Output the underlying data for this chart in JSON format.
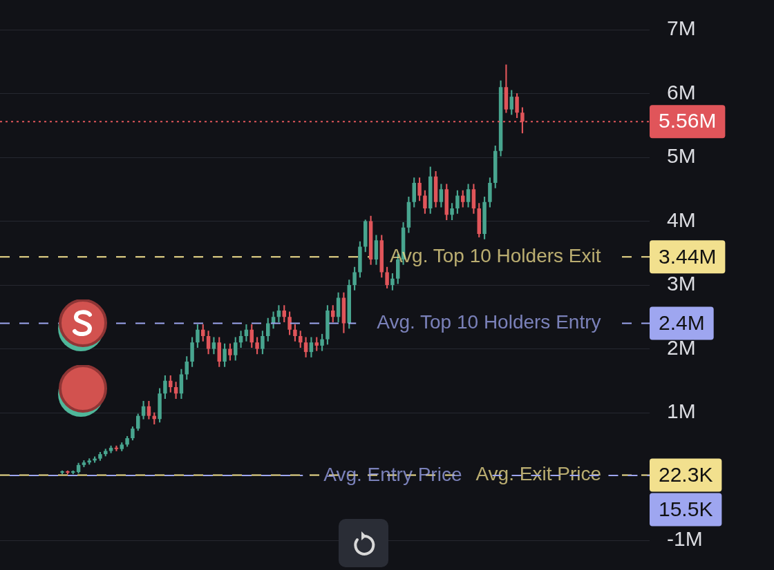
{
  "chart_data": {
    "type": "candlestick",
    "categories": [
      null,
      null,
      null,
      null,
      null,
      null,
      null,
      null,
      null,
      null,
      null,
      null,
      null,
      null,
      null,
      null,
      null,
      null,
      null,
      null,
      null,
      null,
      null,
      null,
      null,
      null,
      null,
      null,
      null,
      null,
      null,
      null,
      null,
      null,
      null,
      null,
      null,
      null,
      null,
      null,
      null,
      null,
      null,
      null,
      null,
      null,
      null,
      null,
      null,
      null,
      null,
      null,
      null,
      null,
      null,
      null,
      null,
      null,
      null,
      null,
      null,
      null,
      null,
      null,
      null,
      null,
      null,
      null,
      null,
      null,
      null,
      null,
      null,
      null,
      null,
      null,
      null,
      null,
      null,
      null,
      null,
      null,
      null,
      null,
      null,
      null,
      null,
      null,
      null,
      null,
      null,
      null,
      null,
      null,
      null,
      null,
      null,
      null,
      null,
      null,
      null,
      null,
      null,
      null,
      null,
      null,
      null,
      null,
      null,
      null,
      null,
      null,
      null,
      null,
      null,
      null,
      null,
      null,
      null,
      null
    ],
    "ohlc": [
      null,
      null,
      null,
      null,
      null,
      null,
      null,
      null,
      null,
      null,
      null,
      [
        0.06,
        0.09,
        0.04,
        0.07
      ],
      [
        0.07,
        0.09,
        0.04,
        0.06
      ],
      [
        0.06,
        0.09,
        0.04,
        0.07
      ],
      [
        0.07,
        0.21,
        0.05,
        0.18
      ],
      [
        0.18,
        0.25,
        0.15,
        0.22
      ],
      [
        0.22,
        0.28,
        0.19,
        0.25
      ],
      [
        0.25,
        0.31,
        0.22,
        0.28
      ],
      [
        0.28,
        0.38,
        0.25,
        0.35
      ],
      [
        0.35,
        0.43,
        0.32,
        0.4
      ],
      [
        0.4,
        0.48,
        0.37,
        0.45
      ],
      [
        0.45,
        0.48,
        0.4,
        0.43
      ],
      [
        0.43,
        0.53,
        0.4,
        0.5
      ],
      [
        0.5,
        0.63,
        0.47,
        0.6
      ],
      [
        0.6,
        0.78,
        0.57,
        0.75
      ],
      [
        0.75,
        0.98,
        0.72,
        0.95
      ],
      [
        0.95,
        1.18,
        0.9,
        1.1
      ],
      [
        1.1,
        1.18,
        0.9,
        0.95
      ],
      [
        0.95,
        1.0,
        0.82,
        0.9
      ],
      [
        0.9,
        1.38,
        0.85,
        1.3
      ],
      [
        1.3,
        1.58,
        1.22,
        1.5
      ],
      [
        1.5,
        1.58,
        1.32,
        1.4
      ],
      [
        1.4,
        1.48,
        1.22,
        1.3
      ],
      [
        1.3,
        1.68,
        1.22,
        1.6
      ],
      [
        1.6,
        1.88,
        1.52,
        1.8
      ],
      [
        1.8,
        2.18,
        1.72,
        2.1
      ],
      [
        2.1,
        2.38,
        2.02,
        2.3
      ],
      [
        2.3,
        2.38,
        2.12,
        2.2
      ],
      [
        2.2,
        2.28,
        1.92,
        2.0
      ],
      [
        2.0,
        2.18,
        1.92,
        2.1
      ],
      [
        2.1,
        2.18,
        1.72,
        1.8
      ],
      [
        1.8,
        2.08,
        1.72,
        2.0
      ],
      [
        2.0,
        2.08,
        1.82,
        1.9
      ],
      [
        1.9,
        2.18,
        1.82,
        2.1
      ],
      [
        2.1,
        2.28,
        2.02,
        2.2
      ],
      [
        2.2,
        2.38,
        2.12,
        2.3
      ],
      [
        2.3,
        2.38,
        2.02,
        2.1
      ],
      [
        2.1,
        2.18,
        1.92,
        2.0
      ],
      [
        2.0,
        2.28,
        1.92,
        2.2
      ],
      [
        2.2,
        2.48,
        2.12,
        2.4
      ],
      [
        2.4,
        2.58,
        2.32,
        2.5
      ],
      [
        2.5,
        2.68,
        2.42,
        2.6
      ],
      [
        2.6,
        2.68,
        2.42,
        2.5
      ],
      [
        2.5,
        2.58,
        2.22,
        2.3
      ],
      [
        2.3,
        2.38,
        2.12,
        2.2
      ],
      [
        2.2,
        2.28,
        2.02,
        2.1
      ],
      [
        2.1,
        2.18,
        1.87,
        1.95
      ],
      [
        1.95,
        2.18,
        1.87,
        2.1
      ],
      [
        2.1,
        2.18,
        1.97,
        2.05
      ],
      [
        2.05,
        2.23,
        1.97,
        2.15
      ],
      [
        2.15,
        2.68,
        2.07,
        2.6
      ],
      [
        2.6,
        2.68,
        2.42,
        2.5
      ],
      [
        2.5,
        2.88,
        2.42,
        2.8
      ],
      [
        2.8,
        2.88,
        2.25,
        2.4
      ],
      [
        2.4,
        3.08,
        2.32,
        3.0
      ],
      [
        3.0,
        3.28,
        2.92,
        3.2
      ],
      [
        3.2,
        3.68,
        3.12,
        3.6
      ],
      [
        3.6,
        4.02,
        3.52,
        4.0
      ],
      [
        4.0,
        4.08,
        3.32,
        3.4
      ],
      [
        3.4,
        3.78,
        3.32,
        3.7
      ],
      [
        3.7,
        3.78,
        3.12,
        3.2
      ],
      [
        3.2,
        3.28,
        2.95,
        3.0
      ],
      [
        3.0,
        3.18,
        2.92,
        3.1
      ],
      [
        3.1,
        3.48,
        3.02,
        3.4
      ],
      [
        3.4,
        3.98,
        3.32,
        3.9
      ],
      [
        3.9,
        4.38,
        3.82,
        4.3
      ],
      [
        4.3,
        4.68,
        4.22,
        4.6
      ],
      [
        4.6,
        4.68,
        4.32,
        4.4
      ],
      [
        4.4,
        4.48,
        4.12,
        4.2
      ],
      [
        4.2,
        4.85,
        4.12,
        4.7
      ],
      [
        4.7,
        4.78,
        4.22,
        4.3
      ],
      [
        4.3,
        4.58,
        4.22,
        4.5
      ],
      [
        4.5,
        4.58,
        4.02,
        4.1
      ],
      [
        4.1,
        4.28,
        4.02,
        4.2
      ],
      [
        4.2,
        4.48,
        4.12,
        4.4
      ],
      [
        4.4,
        4.48,
        4.22,
        4.3
      ],
      [
        4.3,
        4.58,
        4.22,
        4.5
      ],
      [
        4.5,
        4.58,
        4.12,
        4.2
      ],
      [
        4.2,
        4.28,
        3.75,
        3.8
      ],
      [
        3.8,
        4.38,
        3.72,
        4.3
      ],
      [
        4.3,
        4.68,
        4.22,
        4.6
      ],
      [
        4.6,
        5.18,
        4.52,
        5.1
      ],
      [
        5.1,
        6.2,
        5.02,
        6.1
      ],
      [
        6.1,
        6.45,
        5.7,
        5.75
      ],
      [
        5.75,
        6.05,
        5.67,
        5.95
      ],
      [
        5.95,
        6.0,
        5.62,
        5.7
      ],
      [
        5.7,
        5.78,
        5.38,
        5.56
      ],
      null,
      null,
      null,
      null,
      null,
      null,
      null,
      null,
      null,
      null,
      null,
      null,
      null,
      null,
      null,
      null,
      null,
      null,
      null,
      null,
      null,
      null,
      null
    ],
    "colors": [
      null,
      null,
      null,
      null,
      null,
      null,
      null,
      null,
      null,
      null,
      null,
      "#48a58f",
      "#e0555a",
      "#48a58f",
      "#48a58f",
      "#48a58f",
      "#48a58f",
      "#48a58f",
      "#48a58f",
      "#48a58f",
      "#48a58f",
      "#e0555a",
      "#48a58f",
      "#48a58f",
      "#48a58f",
      "#48a58f",
      "#48a58f",
      "#e0555a",
      "#e0555a",
      "#48a58f",
      "#48a58f",
      "#e0555a",
      "#e0555a",
      "#48a58f",
      "#48a58f",
      "#48a58f",
      "#48a58f",
      "#e0555a",
      "#e0555a",
      "#48a58f",
      "#e0555a",
      "#48a58f",
      "#e0555a",
      "#48a58f",
      "#48a58f",
      "#48a58f",
      "#e0555a",
      "#e0555a",
      "#48a58f",
      "#48a58f",
      "#48a58f",
      "#48a58f",
      "#e0555a",
      "#e0555a",
      "#e0555a",
      "#e0555a",
      "#e0555a",
      "#48a58f",
      "#e0555a",
      "#48a58f",
      "#48a58f",
      "#e0555a",
      "#48a58f",
      "#e0555a",
      "#48a58f",
      "#48a58f",
      "#48a58f",
      "#48a58f",
      "#e0555a",
      "#48a58f",
      "#e0555a",
      "#e0555a",
      "#48a58f",
      "#48a58f",
      "#48a58f",
      "#48a58f",
      "#48a58f",
      "#e0555a",
      "#e0555a",
      "#48a58f",
      "#e0555a",
      "#48a58f",
      "#e0555a",
      "#48a58f",
      "#48a58f",
      "#e0555a",
      "#48a58f",
      "#e0555a",
      "#e0555a",
      "#48a58f",
      "#48a58f",
      "#48a58f",
      "#48a58f",
      "#e0555a",
      "#48a58f",
      "#e0555a",
      "#e0555a",
      null,
      null,
      null,
      null,
      null,
      null,
      null,
      null,
      null,
      null,
      null,
      null,
      null,
      null,
      null,
      null,
      null,
      null,
      null,
      null,
      null,
      null,
      null
    ],
    "ylim": [
      -1,
      7
    ],
    "yticks": [
      {
        "value": -1,
        "label": "-1M"
      },
      {
        "value": 1,
        "label": "1M"
      },
      {
        "value": 2,
        "label": "2M"
      },
      {
        "value": 3,
        "label": "3M"
      },
      {
        "value": 4,
        "label": "4M"
      },
      {
        "value": 5,
        "label": "5M"
      },
      {
        "value": 6,
        "label": "6M"
      },
      {
        "value": 7,
        "label": "7M"
      }
    ],
    "tick_labels": "y",
    "grid": "y",
    "ref_lines": [
      {
        "axis": "y",
        "value": 5.56,
        "color": "#e0555a",
        "line_style": "dotted"
      },
      {
        "axis": "y",
        "value": 3.44,
        "label": "Avg. Top 10 Holders Exit",
        "color": "#f2e08e",
        "line_style": "dashed"
      },
      {
        "axis": "y",
        "value": 2.4,
        "label": "Avg. Top 10 Holders Entry",
        "color": "#9ea6f0",
        "line_style": "dashed"
      },
      {
        "axis": "y",
        "value": 0.0223,
        "label": "Avg. Exit Price",
        "color": "#f2e08e",
        "line_style": "dashed"
      },
      {
        "axis": "y",
        "value": 0.0155,
        "label": "Avg. Entry Price",
        "color": "#9ea6f0",
        "line_style": "dashed"
      }
    ],
    "annotations": [
      "5.56M",
      "3.44M",
      "2.4M",
      "22.3K",
      "15.5K"
    ]
  }
}
